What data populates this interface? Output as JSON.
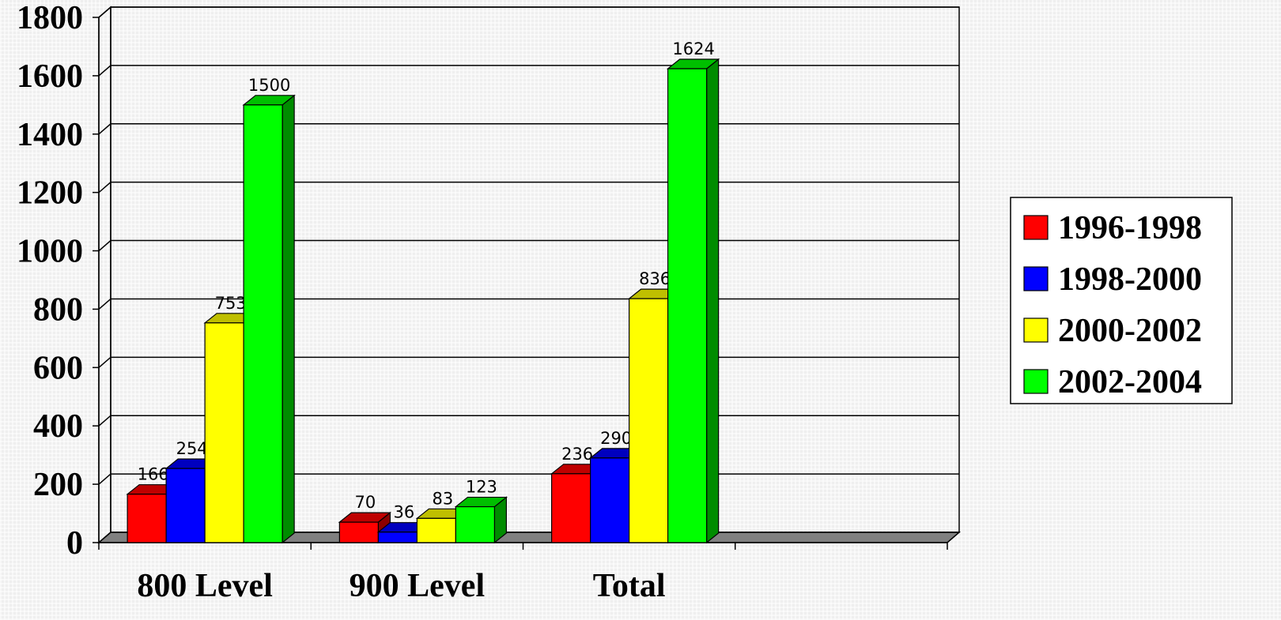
{
  "chart_data": {
    "type": "bar3d",
    "categories": [
      "800 Level",
      "900 Level",
      "Total",
      null
    ],
    "series": [
      {
        "name": "1996-1998",
        "color": "#ff0000",
        "values": [
          166,
          70,
          236,
          null
        ]
      },
      {
        "name": "1998-2000",
        "color": "#0000ff",
        "values": [
          254,
          36,
          290,
          null
        ]
      },
      {
        "name": "2000-2002",
        "color": "#ffff00",
        "values": [
          753,
          83,
          836,
          null
        ]
      },
      {
        "name": "2002-2004",
        "color": "#00ff00",
        "values": [
          1500,
          123,
          1624,
          null
        ]
      }
    ],
    "ylim": [
      0,
      1800
    ],
    "yticks": [
      0,
      200,
      400,
      600,
      800,
      1000,
      1200,
      1400,
      1600,
      1800
    ],
    "grid": true,
    "legend": "right"
  }
}
